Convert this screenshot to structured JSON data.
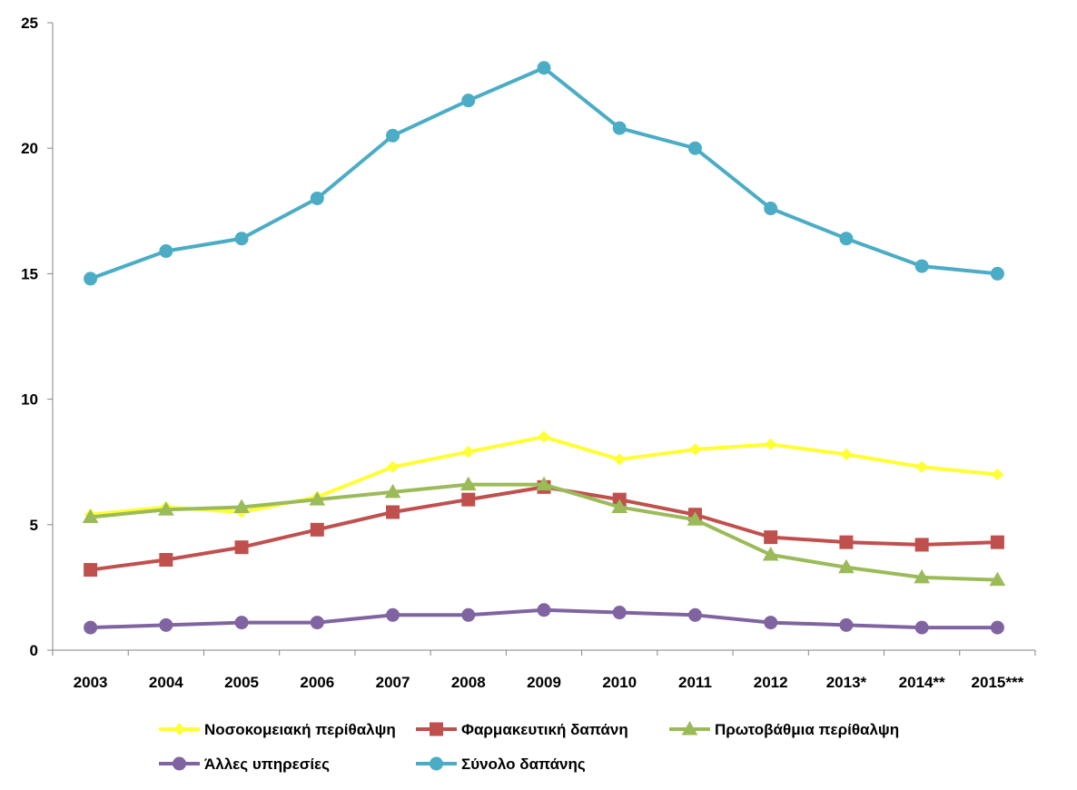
{
  "chart_data": {
    "type": "line",
    "title": "",
    "xlabel": "",
    "ylabel": "",
    "categories": [
      "2003",
      "2004",
      "2005",
      "2006",
      "2007",
      "2008",
      "2009",
      "2010",
      "2011",
      "2012",
      "2013*",
      "2014**",
      "2015***"
    ],
    "ylim": [
      0,
      25
    ],
    "yticks": [
      0,
      5,
      10,
      15,
      20,
      25
    ],
    "grid": false,
    "legend_position": "bottom",
    "series": [
      {
        "name": "Νοσοκομειακή περίθαλψη",
        "color": "#ffff33",
        "marker": "diamond",
        "values": [
          5.4,
          5.7,
          5.5,
          6.1,
          7.3,
          7.9,
          8.5,
          7.6,
          8.0,
          8.2,
          7.8,
          7.3,
          7.0
        ]
      },
      {
        "name": "Φαρμακευτική δαπάνη",
        "color": "#c0504d",
        "marker": "square",
        "values": [
          3.2,
          3.6,
          4.1,
          4.8,
          5.5,
          6.0,
          6.5,
          6.0,
          5.4,
          4.5,
          4.3,
          4.2,
          4.3
        ]
      },
      {
        "name": "Πρωτοβάθμια περίθαλψη",
        "color": "#9bbb59",
        "marker": "triangle",
        "values": [
          5.3,
          5.6,
          5.7,
          6.0,
          6.3,
          6.6,
          6.6,
          5.7,
          5.2,
          3.8,
          3.3,
          2.9,
          2.8
        ]
      },
      {
        "name": "Άλλες υπηρεσίες",
        "color": "#8064a2",
        "marker": "circle",
        "values": [
          0.9,
          1.0,
          1.1,
          1.1,
          1.4,
          1.4,
          1.6,
          1.5,
          1.4,
          1.1,
          1.0,
          0.9,
          0.9
        ]
      },
      {
        "name": "Σύνολο δαπάνης",
        "color": "#4bacc6",
        "marker": "circle",
        "values": [
          14.8,
          15.9,
          16.4,
          18.0,
          20.5,
          21.9,
          23.2,
          20.8,
          20.0,
          17.6,
          16.4,
          15.3,
          15.0
        ]
      }
    ]
  }
}
